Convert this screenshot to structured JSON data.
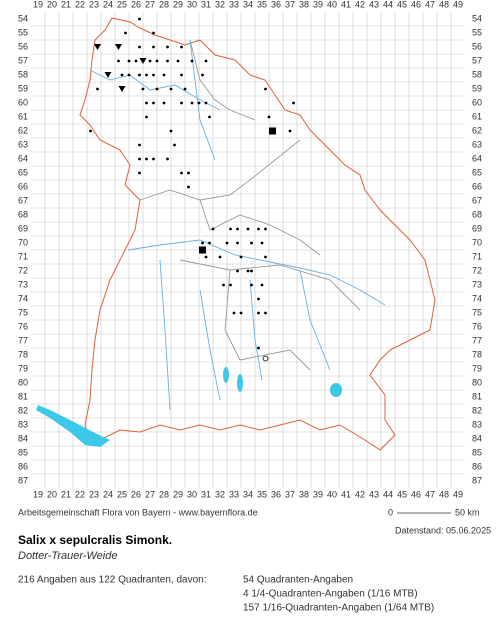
{
  "grid": {
    "columns": [
      "19",
      "20",
      "21",
      "22",
      "23",
      "24",
      "25",
      "26",
      "27",
      "28",
      "29",
      "30",
      "31",
      "32",
      "33",
      "34",
      "35",
      "36",
      "37",
      "38",
      "39",
      "40",
      "41",
      "42",
      "43",
      "44",
      "45",
      "46",
      "47",
      "48",
      "49"
    ],
    "rows": [
      "54",
      "55",
      "56",
      "57",
      "58",
      "59",
      "60",
      "61",
      "62",
      "63",
      "64",
      "65",
      "66",
      "67",
      "68",
      "69",
      "70",
      "71",
      "72",
      "73",
      "74",
      "75",
      "76",
      "77",
      "78",
      "79",
      "80",
      "81",
      "82",
      "83",
      "84",
      "85",
      "86",
      "87"
    ]
  },
  "points": [
    {
      "col": 26.25,
      "row": 54,
      "kind": "dot"
    },
    {
      "col": 25.25,
      "row": 55,
      "kind": "dot"
    },
    {
      "col": 27.25,
      "row": 55,
      "kind": "dot"
    },
    {
      "col": 23.25,
      "row": 56,
      "kind": "triangle"
    },
    {
      "col": 24.75,
      "row": 56,
      "kind": "triangle"
    },
    {
      "col": 26.25,
      "row": 56,
      "kind": "dot"
    },
    {
      "col": 27.25,
      "row": 56,
      "kind": "dot"
    },
    {
      "col": 28.25,
      "row": 56,
      "kind": "dot"
    },
    {
      "col": 29.25,
      "row": 56,
      "kind": "dot"
    },
    {
      "col": 24.75,
      "row": 57,
      "kind": "dot"
    },
    {
      "col": 25.5,
      "row": 57,
      "kind": "dot"
    },
    {
      "col": 26,
      "row": 57,
      "kind": "dot"
    },
    {
      "col": 26.5,
      "row": 57,
      "kind": "triangle"
    },
    {
      "col": 27,
      "row": 57,
      "kind": "dot"
    },
    {
      "col": 27.5,
      "row": 57,
      "kind": "dot"
    },
    {
      "col": 28.25,
      "row": 57,
      "kind": "dot"
    },
    {
      "col": 29,
      "row": 57,
      "kind": "dot"
    },
    {
      "col": 30,
      "row": 57,
      "kind": "dot"
    },
    {
      "col": 31,
      "row": 57,
      "kind": "dot"
    },
    {
      "col": 24,
      "row": 58,
      "kind": "triangle"
    },
    {
      "col": 25,
      "row": 58,
      "kind": "dot"
    },
    {
      "col": 25.5,
      "row": 58,
      "kind": "dot"
    },
    {
      "col": 26.25,
      "row": 58,
      "kind": "dot"
    },
    {
      "col": 26.75,
      "row": 58,
      "kind": "dot"
    },
    {
      "col": 27.25,
      "row": 58,
      "kind": "dot"
    },
    {
      "col": 28,
      "row": 58,
      "kind": "dot"
    },
    {
      "col": 29.25,
      "row": 58,
      "kind": "dot"
    },
    {
      "col": 30.75,
      "row": 58,
      "kind": "dot"
    },
    {
      "col": 23.25,
      "row": 59,
      "kind": "dot"
    },
    {
      "col": 25,
      "row": 59,
      "kind": "triangle"
    },
    {
      "col": 26.5,
      "row": 59,
      "kind": "dot"
    },
    {
      "col": 27.5,
      "row": 59,
      "kind": "dot"
    },
    {
      "col": 28.5,
      "row": 59,
      "kind": "dot"
    },
    {
      "col": 29.5,
      "row": 59,
      "kind": "dot"
    },
    {
      "col": 35.25,
      "row": 59,
      "kind": "dot"
    },
    {
      "col": 26.75,
      "row": 60,
      "kind": "dot"
    },
    {
      "col": 27.25,
      "row": 60,
      "kind": "dot"
    },
    {
      "col": 28,
      "row": 60,
      "kind": "dot"
    },
    {
      "col": 29.25,
      "row": 60,
      "kind": "dot"
    },
    {
      "col": 30,
      "row": 60,
      "kind": "dot"
    },
    {
      "col": 30.5,
      "row": 60,
      "kind": "dot"
    },
    {
      "col": 31,
      "row": 60,
      "kind": "dot"
    },
    {
      "col": 37.25,
      "row": 60,
      "kind": "dot"
    },
    {
      "col": 26.75,
      "row": 61,
      "kind": "dot"
    },
    {
      "col": 31.25,
      "row": 61,
      "kind": "dot"
    },
    {
      "col": 35.5,
      "row": 61,
      "kind": "dot"
    },
    {
      "col": 22.75,
      "row": 62,
      "kind": "dot"
    },
    {
      "col": 28.5,
      "row": 62,
      "kind": "dot"
    },
    {
      "col": 35.75,
      "row": 62,
      "kind": "square"
    },
    {
      "col": 37,
      "row": 62,
      "kind": "dot"
    },
    {
      "col": 26.25,
      "row": 63,
      "kind": "dot"
    },
    {
      "col": 28.75,
      "row": 63,
      "kind": "dot"
    },
    {
      "col": 26.25,
      "row": 64,
      "kind": "dot"
    },
    {
      "col": 26.75,
      "row": 64,
      "kind": "dot"
    },
    {
      "col": 27.25,
      "row": 64,
      "kind": "dot"
    },
    {
      "col": 28.25,
      "row": 64,
      "kind": "dot"
    },
    {
      "col": 26.25,
      "row": 65,
      "kind": "dot"
    },
    {
      "col": 29.25,
      "row": 65,
      "kind": "dot"
    },
    {
      "col": 29.75,
      "row": 65,
      "kind": "dot"
    },
    {
      "col": 29.75,
      "row": 66,
      "kind": "dot"
    },
    {
      "col": 31.5,
      "row": 69,
      "kind": "dot"
    },
    {
      "col": 32.75,
      "row": 69,
      "kind": "dot"
    },
    {
      "col": 33.25,
      "row": 69,
      "kind": "dot"
    },
    {
      "col": 34,
      "row": 69,
      "kind": "dot"
    },
    {
      "col": 34.75,
      "row": 69,
      "kind": "dot"
    },
    {
      "col": 35.25,
      "row": 69,
      "kind": "dot"
    },
    {
      "col": 30.75,
      "row": 70,
      "kind": "dot"
    },
    {
      "col": 31.25,
      "row": 70,
      "kind": "dot"
    },
    {
      "col": 32.5,
      "row": 70,
      "kind": "dot"
    },
    {
      "col": 33.25,
      "row": 70,
      "kind": "dot"
    },
    {
      "col": 34.25,
      "row": 70,
      "kind": "dot"
    },
    {
      "col": 35,
      "row": 70,
      "kind": "dot"
    },
    {
      "col": 30.75,
      "row": 70.5,
      "kind": "square"
    },
    {
      "col": 31,
      "row": 71,
      "kind": "dot"
    },
    {
      "col": 32,
      "row": 71,
      "kind": "dot"
    },
    {
      "col": 33.5,
      "row": 71,
      "kind": "dot"
    },
    {
      "col": 35.25,
      "row": 71,
      "kind": "dot"
    },
    {
      "col": 33.25,
      "row": 72,
      "kind": "dot"
    },
    {
      "col": 34,
      "row": 72,
      "kind": "dot"
    },
    {
      "col": 34.25,
      "row": 72,
      "kind": "dot"
    },
    {
      "col": 32.25,
      "row": 73,
      "kind": "dot"
    },
    {
      "col": 32.75,
      "row": 73,
      "kind": "dot"
    },
    {
      "col": 34.25,
      "row": 73,
      "kind": "dot"
    },
    {
      "col": 35,
      "row": 73,
      "kind": "dot"
    },
    {
      "col": 34.75,
      "row": 74,
      "kind": "dot"
    },
    {
      "col": 33,
      "row": 75,
      "kind": "dot"
    },
    {
      "col": 33.5,
      "row": 75,
      "kind": "dot"
    },
    {
      "col": 34.75,
      "row": 75,
      "kind": "dot"
    },
    {
      "col": 35.25,
      "row": 75,
      "kind": "dot"
    },
    {
      "col": 34.75,
      "row": 77.5,
      "kind": "dot"
    },
    {
      "col": 35.25,
      "row": 78.25,
      "kind": "circle"
    }
  ],
  "footer": {
    "credit": "Arbeitsgemeinschaft Flora von Bayern - www.bayernflora.de",
    "scale_start": "0",
    "scale_end": "50 km",
    "date": "Datenstand: 05.06.2025"
  },
  "species": {
    "name": "Salix x sepulcralis Simonk.",
    "common_name": "Dotter-Trauer-Weide"
  },
  "stats": {
    "summary": "216 Angaben aus 122 Quadranten, davon:",
    "lines": [
      "54 Quadranten-Angaben",
      "4 1/4-Quadranten-Angaben (1/16 MTB)",
      "157 1/16-Quadranten-Angaben (1/64 MTB)"
    ]
  }
}
